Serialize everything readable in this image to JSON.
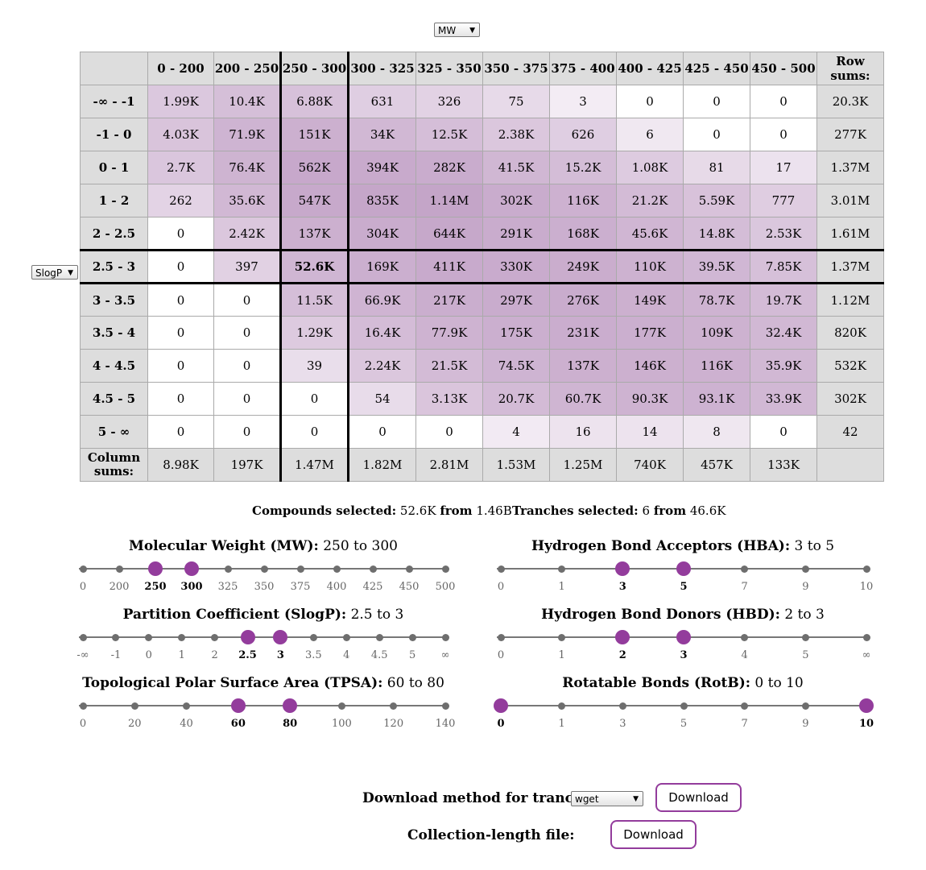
{
  "x_select": {
    "value": "MW"
  },
  "y_select": {
    "value": "SlogP"
  },
  "table": {
    "columns": [
      "0 - 200",
      "200 - 250",
      "250 - 300",
      "300 - 325",
      "325 - 350",
      "350 - 375",
      "375 - 400",
      "400 - 425",
      "425 - 450",
      "450 - 500"
    ],
    "row_sums_header": "Row sums:",
    "column_sums_label": "Column sums:",
    "rows": [
      {
        "label": "-∞ - -1",
        "cells": [
          "1.99K",
          "10.4K",
          "6.88K",
          "631",
          "326",
          "75",
          "3",
          "0",
          "0",
          "0"
        ],
        "sum": "20.3K"
      },
      {
        "label": "-1 - 0",
        "cells": [
          "4.03K",
          "71.9K",
          "151K",
          "34K",
          "12.5K",
          "2.38K",
          "626",
          "6",
          "0",
          "0"
        ],
        "sum": "277K"
      },
      {
        "label": "0 - 1",
        "cells": [
          "2.7K",
          "76.4K",
          "562K",
          "394K",
          "282K",
          "41.5K",
          "15.2K",
          "1.08K",
          "81",
          "17"
        ],
        "sum": "1.37M"
      },
      {
        "label": "1 - 2",
        "cells": [
          "262",
          "35.6K",
          "547K",
          "835K",
          "1.14M",
          "302K",
          "116K",
          "21.2K",
          "5.59K",
          "777"
        ],
        "sum": "3.01M"
      },
      {
        "label": "2 - 2.5",
        "cells": [
          "0",
          "2.42K",
          "137K",
          "304K",
          "644K",
          "291K",
          "168K",
          "45.6K",
          "14.8K",
          "2.53K"
        ],
        "sum": "1.61M"
      },
      {
        "label": "2.5 - 3",
        "cells": [
          "0",
          "397",
          "52.6K",
          "169K",
          "411K",
          "330K",
          "249K",
          "110K",
          "39.5K",
          "7.85K"
        ],
        "sum": "1.37M"
      },
      {
        "label": "3 - 3.5",
        "cells": [
          "0",
          "0",
          "11.5K",
          "66.9K",
          "217K",
          "297K",
          "276K",
          "149K",
          "78.7K",
          "19.7K"
        ],
        "sum": "1.12M"
      },
      {
        "label": "3.5 - 4",
        "cells": [
          "0",
          "0",
          "1.29K",
          "16.4K",
          "77.9K",
          "175K",
          "231K",
          "177K",
          "109K",
          "32.4K"
        ],
        "sum": "820K"
      },
      {
        "label": "4 - 4.5",
        "cells": [
          "0",
          "0",
          "39",
          "2.24K",
          "21.5K",
          "74.5K",
          "137K",
          "146K",
          "116K",
          "35.9K"
        ],
        "sum": "532K"
      },
      {
        "label": "4.5 - 5",
        "cells": [
          "0",
          "0",
          "0",
          "54",
          "3.13K",
          "20.7K",
          "60.7K",
          "90.3K",
          "93.1K",
          "33.9K"
        ],
        "sum": "302K"
      },
      {
        "label": "5 - ∞",
        "cells": [
          "0",
          "0",
          "0",
          "0",
          "0",
          "4",
          "16",
          "14",
          "8",
          "0"
        ],
        "sum": "42"
      }
    ],
    "column_sums": [
      "8.98K",
      "197K",
      "1.47M",
      "1.82M",
      "2.81M",
      "1.53M",
      "1.25M",
      "740K",
      "457K",
      "133K"
    ],
    "selected_row": 5,
    "selected_col": 2
  },
  "stats": {
    "compounds_label": "Compounds selected:",
    "compounds_value": "52.6K",
    "compounds_from": "from",
    "compounds_total": "1.46B",
    "tranches_label": "Tranches selected:",
    "tranches_value": "6",
    "tranches_from": "from",
    "tranches_total": "46.6K"
  },
  "sliders": [
    {
      "id": "mw",
      "title": "Molecular Weight (MW):",
      "range": "250 to 300",
      "ticks": [
        "0",
        "200",
        "250",
        "300",
        "325",
        "350",
        "375",
        "400",
        "425",
        "450",
        "500"
      ],
      "lo": 2,
      "hi": 3
    },
    {
      "id": "slogp",
      "title": "Partition Coefficient (SlogP):",
      "range": "2.5 to 3",
      "ticks": [
        "-∞",
        "-1",
        "0",
        "1",
        "2",
        "2.5",
        "3",
        "3.5",
        "4",
        "4.5",
        "5",
        "∞"
      ],
      "lo": 5,
      "hi": 6
    },
    {
      "id": "tpsa",
      "title": "Topological Polar Surface Area (TPSA):",
      "range": "60 to 80",
      "ticks": [
        "0",
        "20",
        "40",
        "60",
        "80",
        "100",
        "120",
        "140"
      ],
      "lo": 3,
      "hi": 4
    },
    {
      "id": "hba",
      "title": "Hydrogen Bond Acceptors (HBA):",
      "range": "3 to 5",
      "ticks": [
        "0",
        "1",
        "3",
        "5",
        "7",
        "9",
        "10"
      ],
      "lo": 2,
      "hi": 3
    },
    {
      "id": "hbd",
      "title": "Hydrogen Bond Donors (HBD):",
      "range": "2 to 3",
      "ticks": [
        "0",
        "1",
        "2",
        "3",
        "4",
        "5",
        "∞"
      ],
      "lo": 2,
      "hi": 3
    },
    {
      "id": "rotb",
      "title": "Rotatable Bonds (RotB):",
      "range": "0 to 10",
      "ticks": [
        "0",
        "1",
        "3",
        "5",
        "7",
        "9",
        "10"
      ],
      "lo": 0,
      "hi": 6
    }
  ],
  "download": {
    "method_label": "Download method for tranches:",
    "method_value": "wget",
    "button_label": "Download",
    "collection_label": "Collection-length file:",
    "collection_button_label": "Download"
  },
  "colors": {
    "accent": "#933c9c",
    "header_bg": "#dddddd"
  }
}
